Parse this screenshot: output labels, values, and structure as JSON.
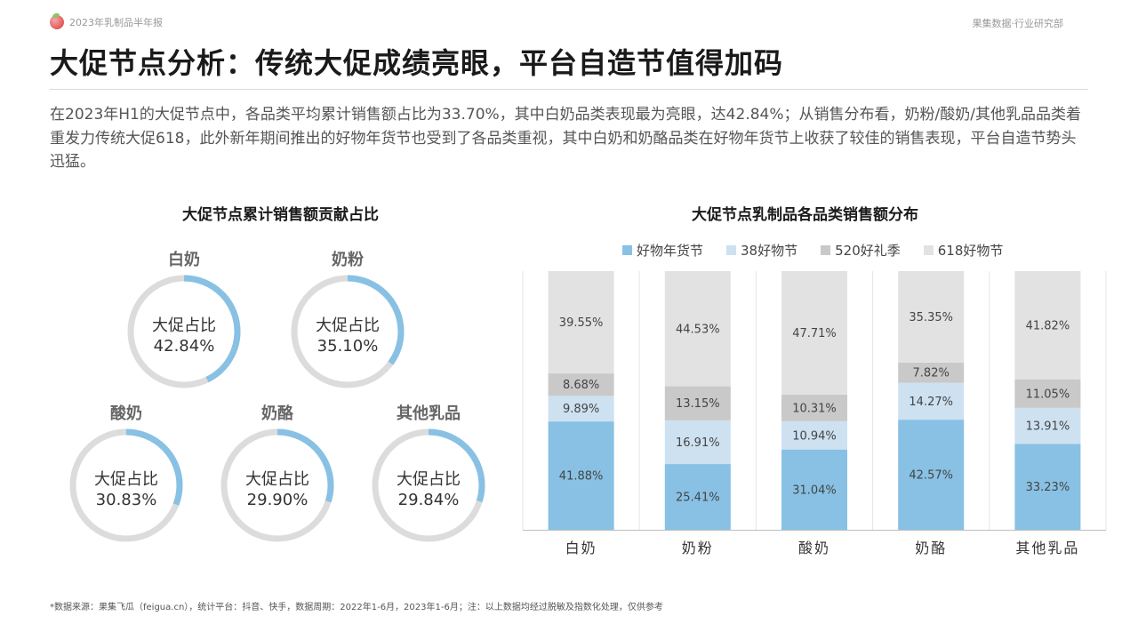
{
  "header": {
    "report_name": "2023年乳制品半年报",
    "department": "果集数据·行业研究部"
  },
  "title": "大促节点分析：传统大促成绩亮眼，平台自造节值得加码",
  "summary": "在2023年H1的大促节点中，各品类平均累计销售额占比为33.70%，其中白奶品类表现最为亮眼，达42.84%；从销售分布看，奶粉/酸奶/其他乳品品类着重发力传统大促618，此外新年期间推出的好物年货节也受到了各品类重视，其中白奶和奶酪品类在好物年货节上收获了较佳的销售表现，平台自造节势头迅猛。",
  "footer": "*数据来源：果集飞瓜（feigua.cn），统计平台：抖音、快手，数据周期：2022年1-6月，2023年1-6月；注：以上数据均经过脱敏及指数化处理，仅供参考",
  "colors": {
    "ring_fill": "#88c1e4",
    "ring_track": "#dcdcdc"
  },
  "chart_data": [
    {
      "type": "pie",
      "title": "大促节点累计销售额贡献占比",
      "center_label": "大促占比",
      "items": [
        {
          "name": "白奶",
          "value": 42.84,
          "label": "42.84%"
        },
        {
          "name": "奶粉",
          "value": 35.1,
          "label": "35.10%"
        },
        {
          "name": "酸奶",
          "value": 30.83,
          "label": "30.83%"
        },
        {
          "name": "奶酪",
          "value": 29.9,
          "label": "29.90%"
        },
        {
          "name": "其他乳品",
          "value": 29.84,
          "label": "29.84%"
        }
      ]
    },
    {
      "type": "bar",
      "stacked": true,
      "title": "大促节点乳制品各品类销售额分布",
      "categories": [
        "白奶",
        "奶粉",
        "酸奶",
        "奶酪",
        "其他乳品"
      ],
      "ylim": [
        0,
        100
      ],
      "legend_position": "top",
      "series": [
        {
          "name": "好物年货节",
          "color": "#88c1e4",
          "values": [
            41.88,
            25.41,
            31.04,
            42.57,
            33.23
          ]
        },
        {
          "name": "38好物节",
          "color": "#cde1f1",
          "values": [
            9.89,
            16.91,
            10.94,
            14.27,
            13.91
          ]
        },
        {
          "name": "520好礼季",
          "color": "#c9c9c9",
          "values": [
            8.68,
            13.15,
            10.31,
            7.82,
            11.05
          ]
        },
        {
          "name": "618好物节",
          "color": "#e2e2e2",
          "values": [
            39.55,
            44.53,
            47.71,
            35.35,
            41.82
          ]
        }
      ]
    }
  ]
}
